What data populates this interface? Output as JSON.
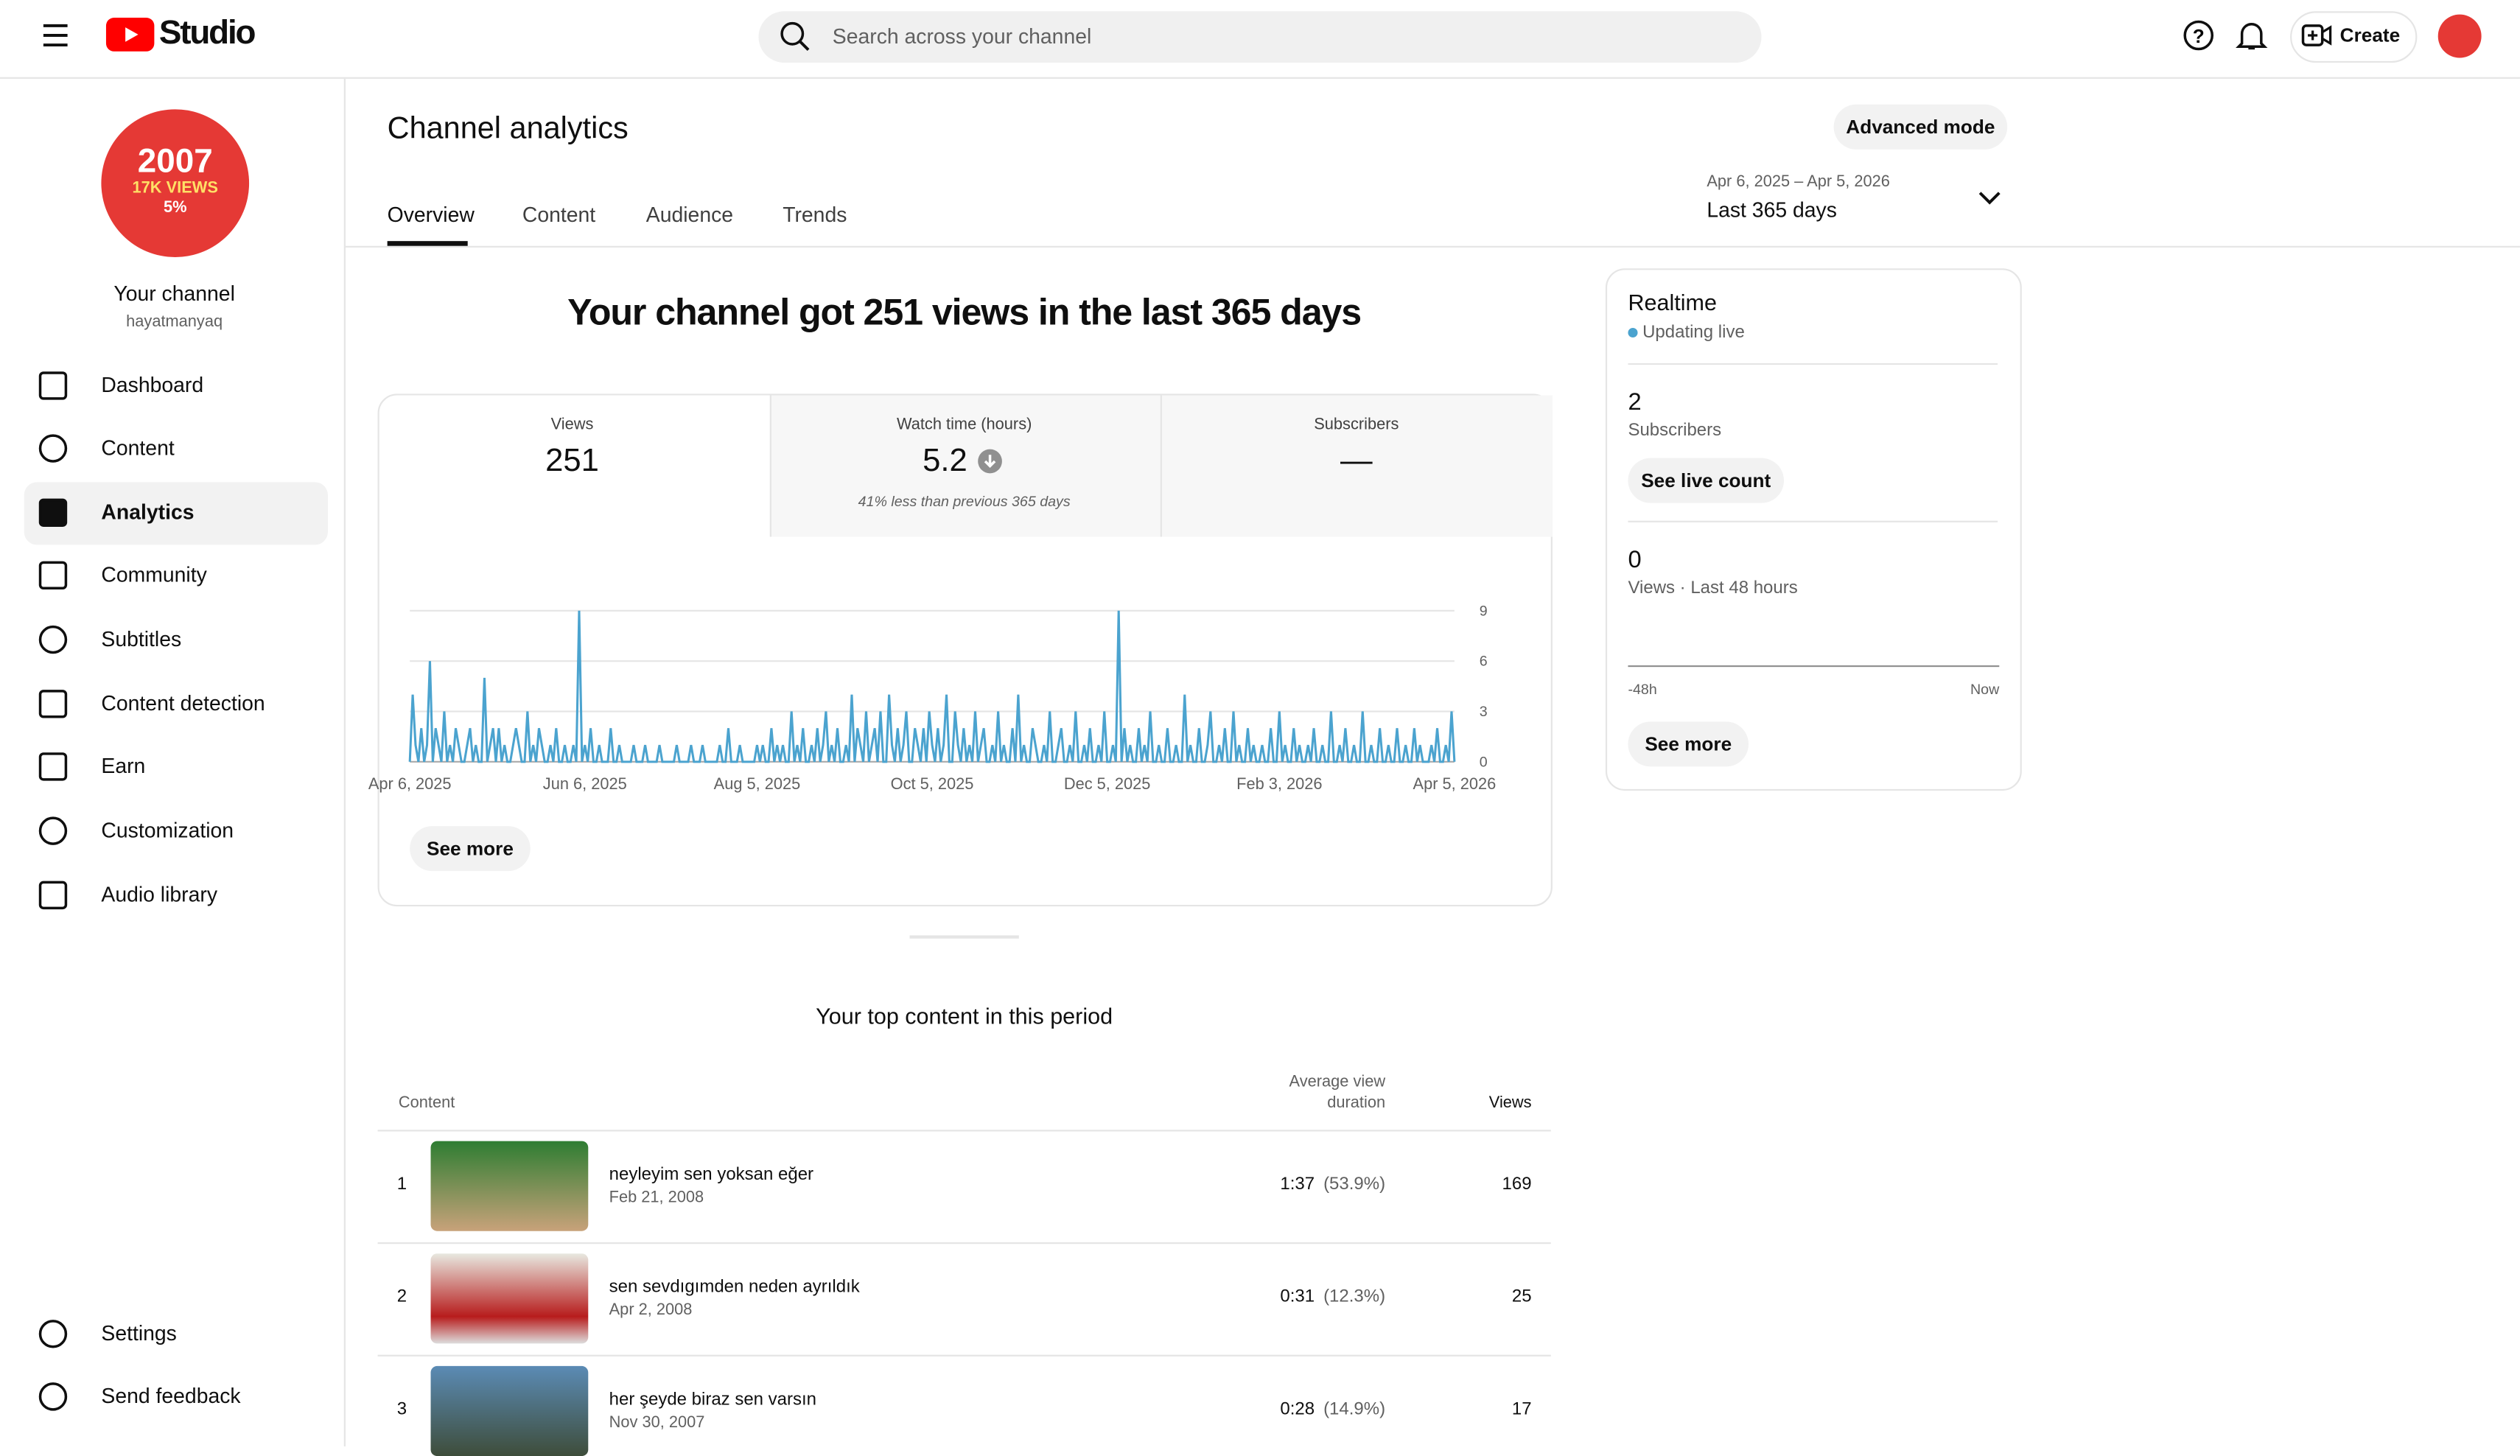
{
  "header": {
    "logo": "Studio",
    "search_placeholder": "Search across your channel",
    "create": "Create"
  },
  "sidebar": {
    "avatar_text": [
      "2007",
      "17K VIEWS",
      "5%"
    ],
    "channel_name": "Your channel",
    "handle": "hayatmanyaq",
    "nav": [
      "Dashboard",
      "Content",
      "Analytics",
      "Community",
      "Subtitles",
      "Content detection",
      "Earn",
      "Customization",
      "Audio library"
    ],
    "footer_nav": [
      "Settings",
      "Send feedback"
    ]
  },
  "main": {
    "title": "Channel analytics",
    "advanced_mode": "Advanced mode",
    "date_range": "Apr 6, 2025 – Apr 5, 2026",
    "period": "Last 365 days",
    "tabs": [
      "Overview",
      "Content",
      "Audience",
      "Trends"
    ],
    "headline": "Your channel got 251 views in the last 365 days",
    "stats": [
      {
        "label": "Views",
        "value": "251"
      },
      {
        "label": "Watch time (hours)",
        "value": "5.2",
        "note": "41% less than previous 365 days"
      },
      {
        "label": "Subscribers",
        "value": "—"
      }
    ],
    "see_more": "See more",
    "top_content": {
      "title": "Your top content in this period",
      "columns": [
        "Content",
        "Average view duration",
        "Views"
      ],
      "rows": [
        {
          "rank": "1",
          "title": "neyleyim sen yoksan eğer",
          "date": "Feb 21, 2008",
          "duration": "1:37",
          "percent": "(53.9%)",
          "views": "169"
        },
        {
          "rank": "2",
          "title": "sen sevdıgımden neden ayrıldık",
          "date": "Apr 2, 2008",
          "duration": "0:31",
          "percent": "(12.3%)",
          "views": "25"
        },
        {
          "rank": "3",
          "title": "her şeyde biraz sen varsın",
          "date": "Nov 30, 2007",
          "duration": "0:28",
          "percent": "(14.9%)",
          "views": "17"
        }
      ]
    }
  },
  "realtime": {
    "title": "Realtime",
    "status": "Updating live",
    "subscribers": {
      "value": "2",
      "label": "Subscribers"
    },
    "see_live_count": "See live count",
    "views": {
      "value": "0",
      "label": "Views · Last 48 hours"
    },
    "axis_start": "-48h",
    "axis_end": "Now",
    "see_more": "See more"
  },
  "chart_data": {
    "type": "line",
    "color": "#4ba3cf",
    "grid": true,
    "ylim": [
      0,
      9
    ],
    "yticks": [
      0,
      3,
      6,
      9
    ],
    "xlim": [
      0,
      364
    ],
    "xticks": [
      {
        "value": 0,
        "label": "Apr 6, 2025"
      },
      {
        "value": 61,
        "label": "Jun 6, 2025"
      },
      {
        "value": 121,
        "label": "Aug 5, 2025"
      },
      {
        "value": 182,
        "label": "Oct 5, 2025"
      },
      {
        "value": 243,
        "label": "Dec 5, 2025"
      },
      {
        "value": 303,
        "label": "Feb 3, 2026"
      },
      {
        "value": 364,
        "label": "Apr 5, 2026"
      }
    ],
    "values": [
      0,
      4,
      1,
      0,
      2,
      0,
      1,
      6,
      0,
      2,
      1,
      0,
      3,
      0,
      1,
      0,
      2,
      1,
      0,
      0,
      1,
      2,
      0,
      1,
      0,
      0,
      5,
      0,
      1,
      2,
      0,
      2,
      0,
      1,
      0,
      0,
      1,
      2,
      1,
      0,
      0,
      3,
      0,
      1,
      0,
      2,
      1,
      0,
      0,
      1,
      0,
      2,
      0,
      0,
      1,
      0,
      0,
      1,
      0,
      9,
      0,
      1,
      0,
      2,
      0,
      0,
      1,
      0,
      0,
      0,
      2,
      0,
      0,
      1,
      0,
      0,
      0,
      0,
      1,
      0,
      0,
      0,
      1,
      0,
      0,
      0,
      0,
      1,
      0,
      0,
      0,
      0,
      0,
      1,
      0,
      0,
      0,
      0,
      1,
      0,
      0,
      0,
      1,
      0,
      0,
      0,
      0,
      0,
      1,
      0,
      0,
      2,
      0,
      0,
      0,
      1,
      0,
      0,
      0,
      0,
      0,
      1,
      0,
      1,
      0,
      0,
      2,
      0,
      1,
      0,
      1,
      0,
      0,
      3,
      0,
      1,
      0,
      2,
      0,
      0,
      1,
      0,
      2,
      0,
      1,
      3,
      0,
      1,
      0,
      2,
      0,
      0,
      1,
      0,
      4,
      0,
      2,
      1,
      0,
      3,
      0,
      1,
      2,
      0,
      3,
      0,
      0,
      4,
      1,
      0,
      2,
      0,
      1,
      3,
      0,
      0,
      2,
      1,
      0,
      2,
      0,
      3,
      1,
      0,
      2,
      0,
      1,
      4,
      0,
      0,
      3,
      1,
      0,
      2,
      0,
      1,
      0,
      3,
      0,
      1,
      2,
      0,
      0,
      1,
      0,
      3,
      0,
      1,
      0,
      0,
      2,
      0,
      4,
      0,
      1,
      0,
      0,
      2,
      1,
      0,
      0,
      1,
      0,
      3,
      0,
      0,
      1,
      2,
      0,
      0,
      1,
      0,
      3,
      0,
      0,
      1,
      0,
      2,
      0,
      0,
      1,
      0,
      3,
      0,
      0,
      1,
      0,
      9,
      0,
      2,
      0,
      1,
      0,
      0,
      2,
      0,
      1,
      0,
      3,
      0,
      0,
      1,
      0,
      0,
      2,
      0,
      0,
      1,
      0,
      0,
      4,
      0,
      1,
      0,
      0,
      2,
      0,
      0,
      1,
      3,
      0,
      0,
      1,
      0,
      2,
      0,
      0,
      3,
      0,
      1,
      0,
      0,
      2,
      0,
      1,
      0,
      0,
      1,
      0,
      0,
      2,
      0,
      0,
      3,
      0,
      1,
      0,
      0,
      2,
      0,
      1,
      0,
      0,
      1,
      0,
      2,
      0,
      0,
      1,
      0,
      0,
      3,
      0,
      0,
      1,
      0,
      2,
      0,
      0,
      1,
      0,
      0,
      3,
      0,
      0,
      1,
      0,
      0,
      2,
      0,
      0,
      1,
      0,
      0,
      2,
      0,
      0,
      1,
      0,
      0,
      2,
      0,
      1,
      0,
      0,
      0,
      1,
      0,
      2,
      0,
      0,
      1,
      0,
      3,
      0
    ]
  }
}
